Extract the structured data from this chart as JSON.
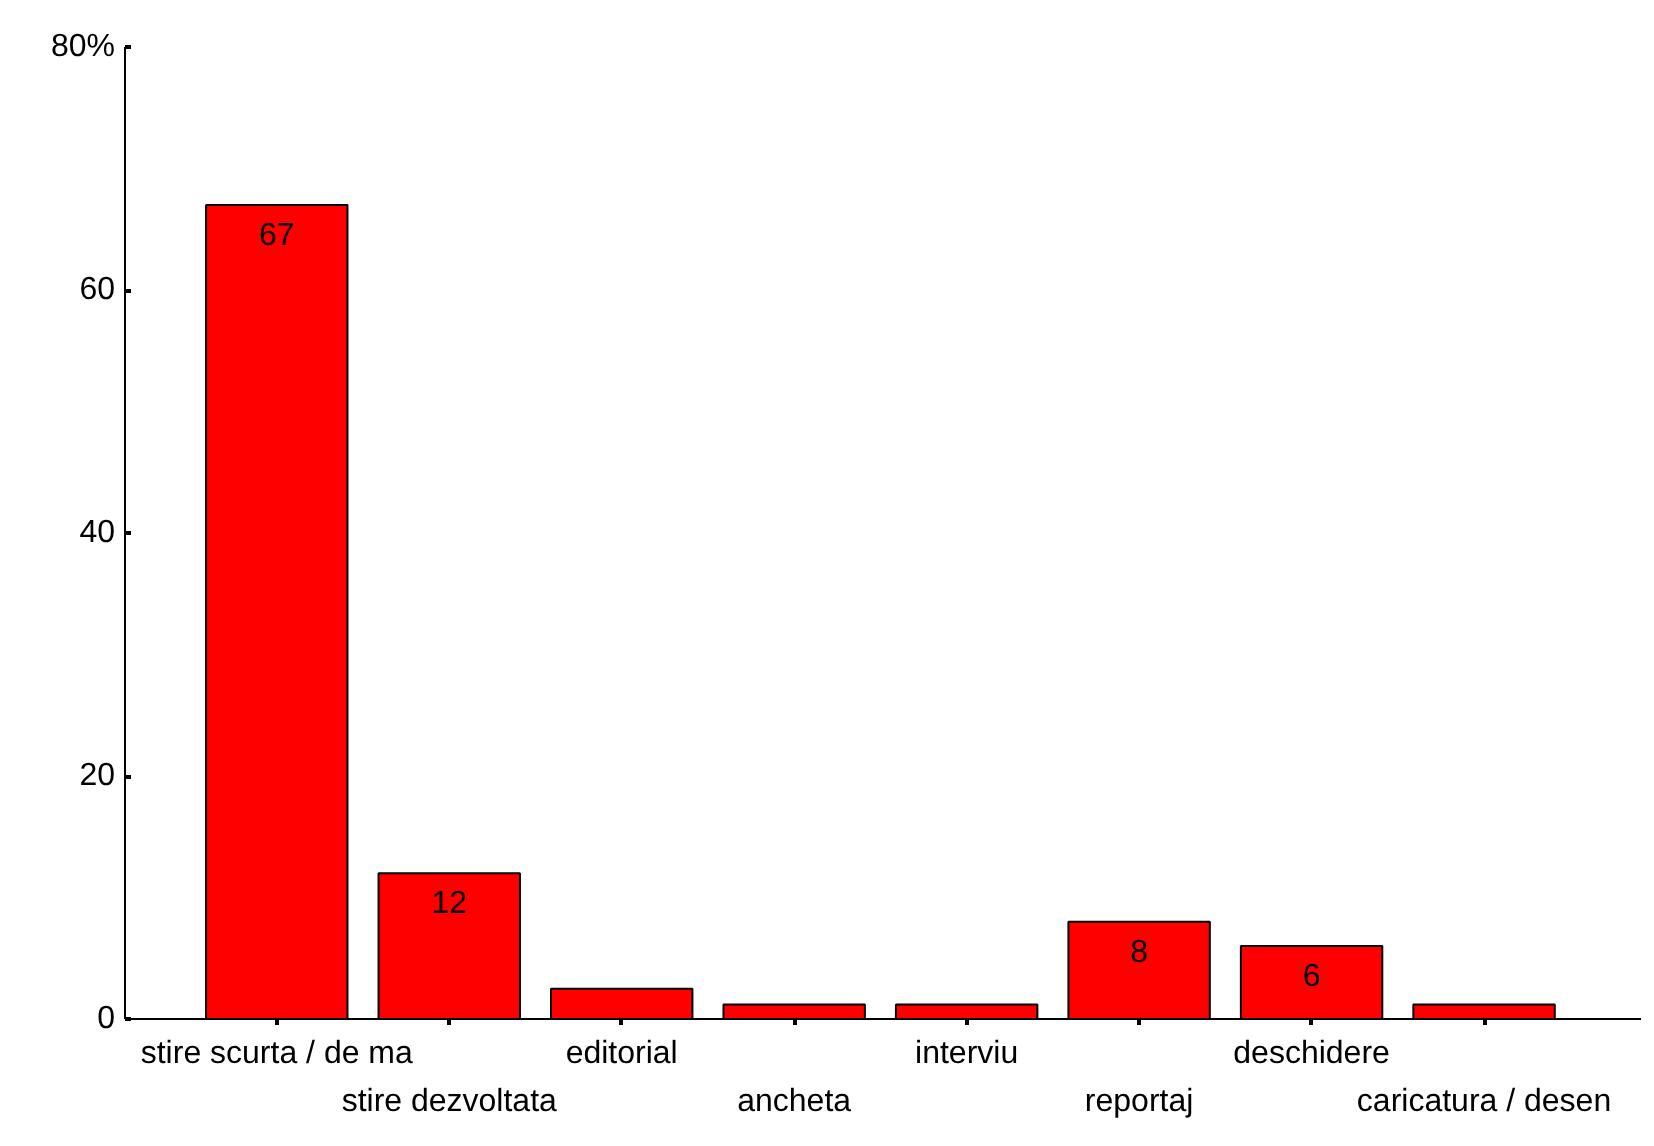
{
  "chart_data": {
    "type": "bar",
    "categories": [
      "stire scurta / de ma",
      "stire dezvoltata",
      "editorial",
      "ancheta",
      "interviu",
      "reportaj",
      "deschidere",
      "caricatura / desen"
    ],
    "values": [
      67,
      12,
      2.5,
      1.2,
      1.2,
      8,
      6,
      1.2
    ],
    "value_labels": [
      "67",
      "12",
      null,
      null,
      null,
      "8",
      "6",
      null
    ],
    "color": "#ff0000",
    "ylim": [
      0,
      80
    ],
    "yticks": [
      0,
      20,
      40,
      60,
      {
        "value": 80,
        "label": "80%"
      }
    ],
    "grid": false
  }
}
